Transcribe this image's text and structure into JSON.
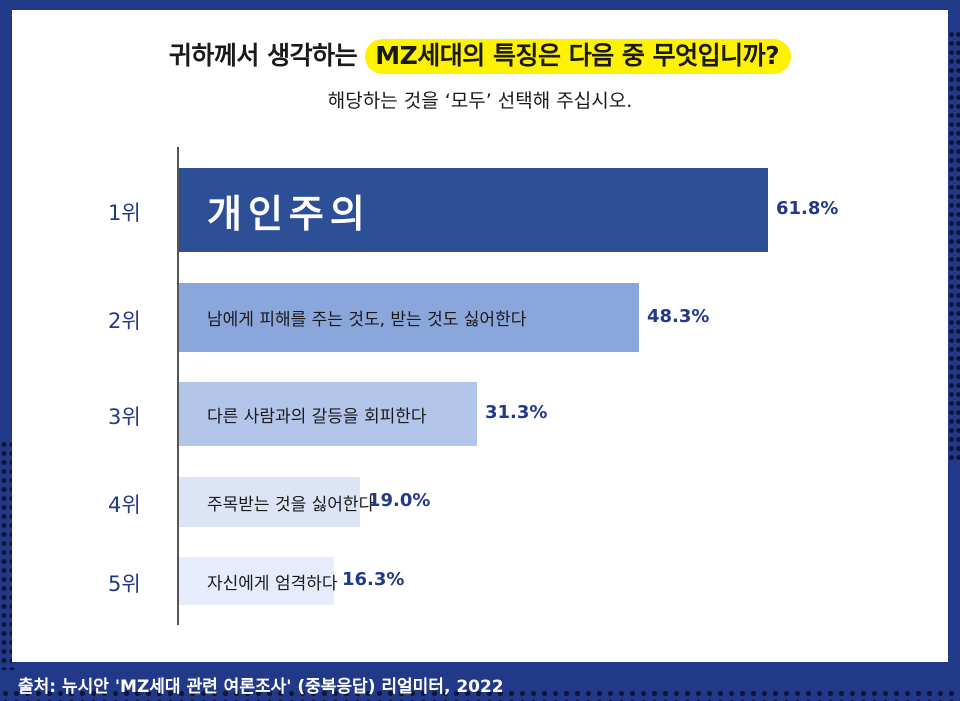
{
  "header": {
    "title_prefix": "귀하께서 생각하는 ",
    "title_highlight": "MZ세대의 특징은 다음 중 무엇입니까?",
    "subtitle": "해당하는 것을 ‘모두’ 선택해 주십시오."
  },
  "colors": {
    "background": "#22398a",
    "highlight": "#fff200",
    "bars": [
      "#2d4f96",
      "#8aa6da",
      "#b3c6ea",
      "#dde4f6",
      "#e6ecfb"
    ]
  },
  "chart_data": {
    "type": "bar",
    "orientation": "horizontal",
    "title": "귀하께서 생각하는 MZ세대의 특징은 다음 중 무엇입니까?",
    "categories": [
      "개인주의",
      "남에게 피해를 주는 것도, 받는 것도 싫어한다",
      "다른 사람과의 갈등을 회피한다",
      "주목받는 것을 싫어한다",
      "자신에게 엄격하다"
    ],
    "ranks": [
      "1위",
      "2위",
      "3위",
      "4위",
      "5위"
    ],
    "values": [
      61.8,
      48.3,
      31.3,
      19.0,
      16.3
    ],
    "value_labels": [
      "61.8%",
      "48.3%",
      "31.3%",
      "19.0%",
      "16.3%"
    ],
    "unit": "%",
    "xlim": [
      0,
      61.8
    ]
  },
  "footer": {
    "source": "출처: 뉴시안 'MZ세대 관련 여론조사' (중복응답) 리얼미터, 2022"
  }
}
